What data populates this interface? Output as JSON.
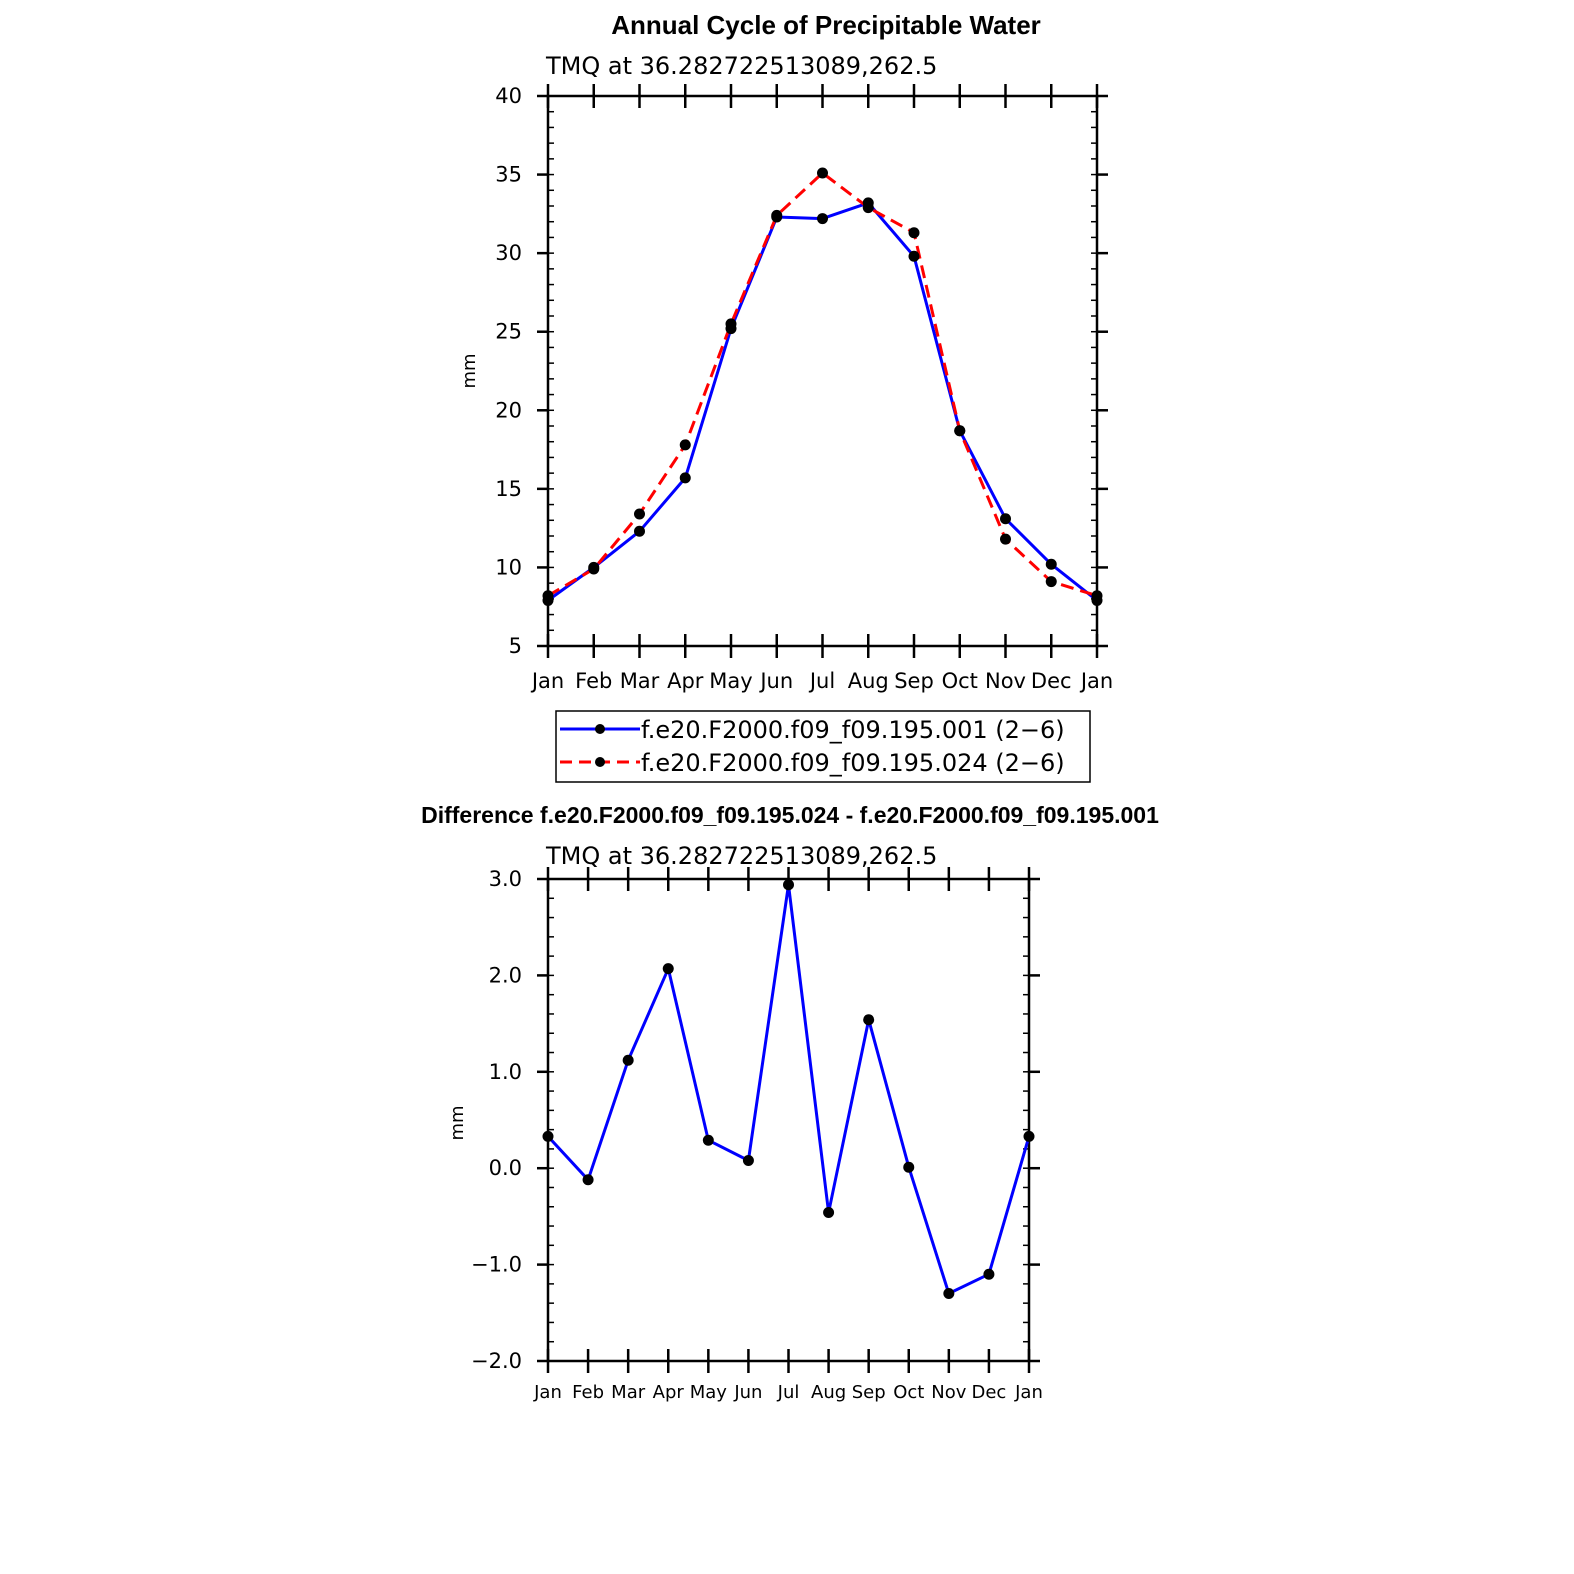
{
  "chart_data": [
    {
      "type": "line",
      "title": "Annual Cycle of Precipitable Water",
      "subtitle": "TMQ at 36.282722513089,262.5",
      "xlabel": "",
      "ylabel": "mm",
      "categories": [
        "Jan",
        "Feb",
        "Mar",
        "Apr",
        "May",
        "Jun",
        "Jul",
        "Aug",
        "Sep",
        "Oct",
        "Nov",
        "Dec",
        "Jan"
      ],
      "ylim": [
        5,
        40
      ],
      "yticks": [
        "5",
        "10",
        "15",
        "20",
        "25",
        "30",
        "35",
        "40"
      ],
      "series": [
        {
          "name": "f.e20.F2000.f09_f09.195.001 (2−6)",
          "color": "#0000ff",
          "dash": "solid",
          "values": [
            7.9,
            10.0,
            12.3,
            15.7,
            25.2,
            32.3,
            32.2,
            33.2,
            29.8,
            18.7,
            13.1,
            10.2,
            7.9
          ]
        },
        {
          "name": "f.e20.F2000.f09_f09.195.024 (2−6)",
          "color": "#ff0000",
          "dash": "dashed",
          "values": [
            8.2,
            9.9,
            13.4,
            17.8,
            25.5,
            32.4,
            35.1,
            32.9,
            31.3,
            18.7,
            11.8,
            9.1,
            8.2
          ]
        }
      ],
      "legend": "bottom"
    },
    {
      "type": "line",
      "title": "Difference f.e20.F2000.f09_f09.195.024 - f.e20.F2000.f09_f09.195.001",
      "subtitle": "TMQ at 36.282722513089,262.5",
      "xlabel": "",
      "ylabel": "mm",
      "categories": [
        "Jan",
        "Feb",
        "Mar",
        "Apr",
        "May",
        "Jun",
        "Jul",
        "Aug",
        "Sep",
        "Oct",
        "Nov",
        "Dec",
        "Jan"
      ],
      "ylim": [
        -2.0,
        3.0
      ],
      "yticks": [
        "−2.0",
        "−1.0",
        "0.0",
        "1.0",
        "2.0",
        "3.0"
      ],
      "series": [
        {
          "color": "#0000ff",
          "dash": "solid",
          "values": [
            0.33,
            -0.12,
            1.12,
            2.07,
            0.29,
            0.08,
            2.94,
            -0.46,
            1.54,
            0.01,
            -1.3,
            -1.1,
            0.33
          ]
        }
      ]
    }
  ]
}
